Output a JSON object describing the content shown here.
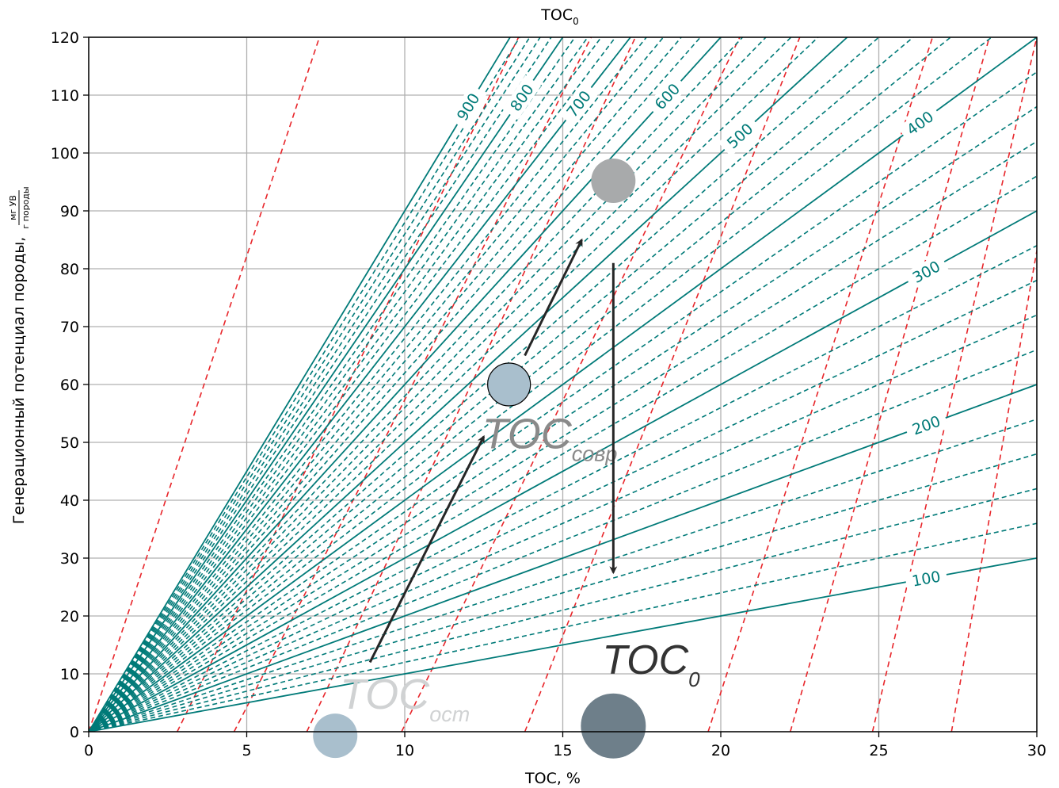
{
  "colors": {
    "teal": "#007a78",
    "red": "#e8252a",
    "grid": "#b0b0b0",
    "arrow": "#262626",
    "toc0_marker": "#6e7f8a",
    "tocsovr_marker": "#a9bfcd",
    "tocost_marker": "#a9bfcd",
    "gray_marker": "#a8aaab"
  },
  "top_title": {
    "main": "TOC",
    "sub": "0"
  },
  "chart_data": {
    "type": "line",
    "xlabel": "TOC, %",
    "ylabel": "Генерационный потенциал породы,",
    "ylabel_unit_num": "мг УВ",
    "ylabel_unit_den": "г породы",
    "xlim": [
      0,
      30
    ],
    "ylim": [
      0,
      120
    ],
    "xticks": [
      0,
      5,
      10,
      15,
      20,
      25,
      30
    ],
    "yticks": [
      0,
      10,
      20,
      30,
      40,
      50,
      60,
      70,
      80,
      90,
      100,
      110,
      120
    ],
    "grid": true,
    "hi_solid": [
      100,
      200,
      300,
      400,
      500,
      600,
      700,
      800,
      900
    ],
    "hi_labeled": [
      {
        "hi": 100,
        "text": "100"
      },
      {
        "hi": 200,
        "text": "200"
      },
      {
        "hi": 300,
        "text": "300"
      },
      {
        "hi": 400,
        "text": "400"
      },
      {
        "hi": 500,
        "text": "500"
      },
      {
        "hi": 600,
        "text": "600"
      },
      {
        "hi": 700,
        "text": "700"
      },
      {
        "hi": 800,
        "text": "800"
      },
      {
        "hi": 900,
        "text": "900"
      }
    ],
    "red_lines_x_at_y0": [
      0,
      2.8,
      4.6,
      6.9,
      9.9,
      13.8,
      19.6,
      22.2,
      24.8,
      27.3
    ],
    "red_lines_x_at_y120": [
      7.3,
      13.6,
      15.9,
      17.3,
      20.6,
      22.5,
      26.7,
      28.5,
      30,
      31.2
    ],
    "markers": [
      {
        "name": "toc0",
        "x": 16.6,
        "y": 1,
        "r_px": 41
      },
      {
        "name": "tocsovr",
        "x": 13.3,
        "y": 60,
        "r_px": 27
      },
      {
        "name": "tocost",
        "x": 7.8,
        "y": -0.7,
        "r_px": 28
      },
      {
        "name": "gray",
        "x": 16.6,
        "y": 95.2,
        "r_px": 28
      }
    ],
    "arrows": [
      {
        "from": [
          8.9,
          12
        ],
        "to": [
          12.5,
          51
        ]
      },
      {
        "from": [
          13.8,
          65
        ],
        "to": [
          15.6,
          85
        ]
      },
      {
        "from": [
          16.6,
          81
        ],
        "to": [
          16.6,
          27.5
        ]
      }
    ],
    "annotations": [
      {
        "name": "toc0-label",
        "main": "TOC",
        "sub": "0",
        "x": 16.5,
        "y": 10,
        "color": "#333333",
        "size": 52
      },
      {
        "name": "tocsovr-label",
        "main": "TOC",
        "sub": "совр",
        "x": 12.7,
        "y": 49,
        "color": "#8a8a8a",
        "size": 54
      },
      {
        "name": "tocost-label",
        "main": "TOC",
        "sub": "ост",
        "x": 8.2,
        "y": 4,
        "color": "#d0d2d3",
        "size": 54
      }
    ]
  }
}
